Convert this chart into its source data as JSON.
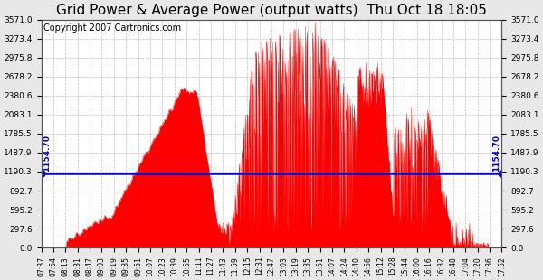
{
  "title": "Grid Power & Average Power (output watts)  Thu Oct 18 18:05",
  "copyright": "Copyright 2007 Cartronics.com",
  "ymin": 0.0,
  "ymax": 3571.0,
  "yticks": [
    0.0,
    297.6,
    595.2,
    892.7,
    1190.3,
    1487.9,
    1785.5,
    2083.1,
    2380.6,
    2678.2,
    2975.8,
    3273.4,
    3571.0
  ],
  "avg_line_y": 1154.7,
  "avg_label": "1154.70",
  "background_color": "#e8e8e8",
  "plot_bg_color": "#ffffff",
  "bar_color": "#ff0000",
  "line_color": "#0000cc",
  "title_fontsize": 11,
  "copyright_fontsize": 7,
  "xtick_labels": [
    "07:37",
    "07:54",
    "08:13",
    "08:31",
    "08:47",
    "09:03",
    "09:19",
    "09:35",
    "09:51",
    "10:07",
    "10:23",
    "10:39",
    "10:55",
    "11:11",
    "11:27",
    "11:43",
    "11:59",
    "12:15",
    "12:31",
    "12:47",
    "13:03",
    "13:19",
    "13:35",
    "13:51",
    "14:07",
    "14:24",
    "14:40",
    "14:56",
    "15:12",
    "15:28",
    "15:44",
    "16:00",
    "16:16",
    "16:32",
    "16:48",
    "17:04",
    "17:20",
    "17:36",
    "17:52"
  ],
  "grid_color": "#c0c0c0"
}
